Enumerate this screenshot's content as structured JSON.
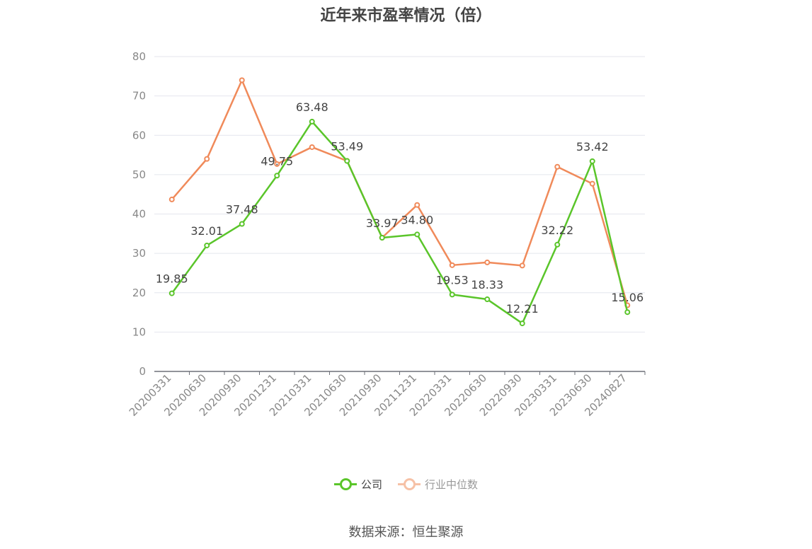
{
  "chart_data": {
    "type": "line",
    "title": "近年来市盈率情况（倍）",
    "categories": [
      "20200331",
      "20200630",
      "20200930",
      "20201231",
      "20210331",
      "20210630",
      "20210930",
      "20211231",
      "20220331",
      "20220630",
      "20220930",
      "20230331",
      "20230630",
      "20240827"
    ],
    "series": [
      {
        "name": "公司",
        "color": "#5ac52a",
        "values": [
          19.85,
          32.01,
          37.48,
          49.75,
          63.48,
          53.49,
          33.97,
          34.8,
          19.53,
          18.33,
          12.21,
          32.22,
          53.42,
          15.06
        ],
        "show_labels": true
      },
      {
        "name": "行业中位数",
        "color": "#f08a5a",
        "values": [
          43.7,
          54.0,
          74.0,
          52.7,
          57.0,
          53.5,
          34.0,
          42.3,
          27.0,
          27.7,
          26.9,
          52.0,
          47.7,
          16.8
        ],
        "show_labels": false
      }
    ],
    "ylim": [
      0,
      80
    ],
    "yticks": [
      0,
      10,
      20,
      30,
      40,
      50,
      60,
      70,
      80
    ],
    "grid": true,
    "legend_position": "bottom"
  },
  "source": "数据来源：恒生聚源"
}
